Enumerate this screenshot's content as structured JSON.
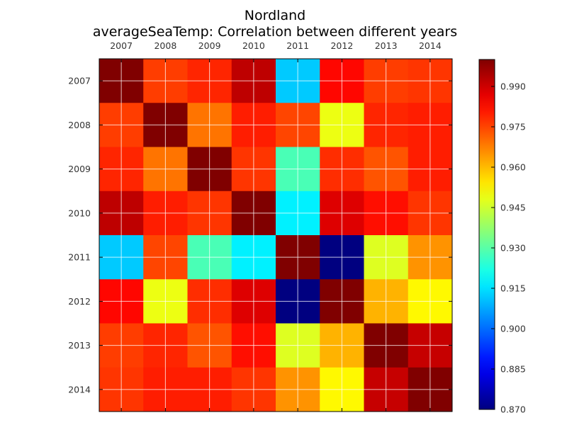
{
  "chart_data": {
    "type": "heatmap",
    "title": "Nordland",
    "subtitle": "averageSeaTemp: Correlation between different years",
    "xlabels": [
      "2007",
      "2008",
      "2009",
      "2010",
      "2011",
      "2012",
      "2013",
      "2014"
    ],
    "ylabels": [
      "2007",
      "2008",
      "2009",
      "2010",
      "2011",
      "2012",
      "2013",
      "2014"
    ],
    "matrix": [
      [
        1.0,
        0.976,
        0.979,
        0.992,
        0.912,
        0.983,
        0.976,
        0.977
      ],
      [
        0.976,
        1.0,
        0.969,
        0.98,
        0.975,
        0.949,
        0.979,
        0.98
      ],
      [
        0.979,
        0.969,
        1.0,
        0.977,
        0.928,
        0.978,
        0.973,
        0.98
      ],
      [
        0.992,
        0.98,
        0.977,
        1.0,
        0.917,
        0.988,
        0.982,
        0.977
      ],
      [
        0.912,
        0.975,
        0.928,
        0.917,
        1.0,
        0.87,
        0.947,
        0.965
      ],
      [
        0.983,
        0.949,
        0.978,
        0.988,
        0.87,
        1.0,
        0.961,
        0.952
      ],
      [
        0.976,
        0.979,
        0.973,
        0.982,
        0.947,
        0.961,
        1.0,
        0.991
      ],
      [
        0.977,
        0.98,
        0.98,
        0.977,
        0.965,
        0.952,
        0.991,
        1.0
      ]
    ],
    "colorbar": {
      "min": 0.87,
      "max": 1.0,
      "ticks": [
        "0.870",
        "0.885",
        "0.900",
        "0.915",
        "0.930",
        "0.945",
        "0.960",
        "0.975",
        "0.990"
      ],
      "colormap": "jet"
    },
    "grid": true
  }
}
